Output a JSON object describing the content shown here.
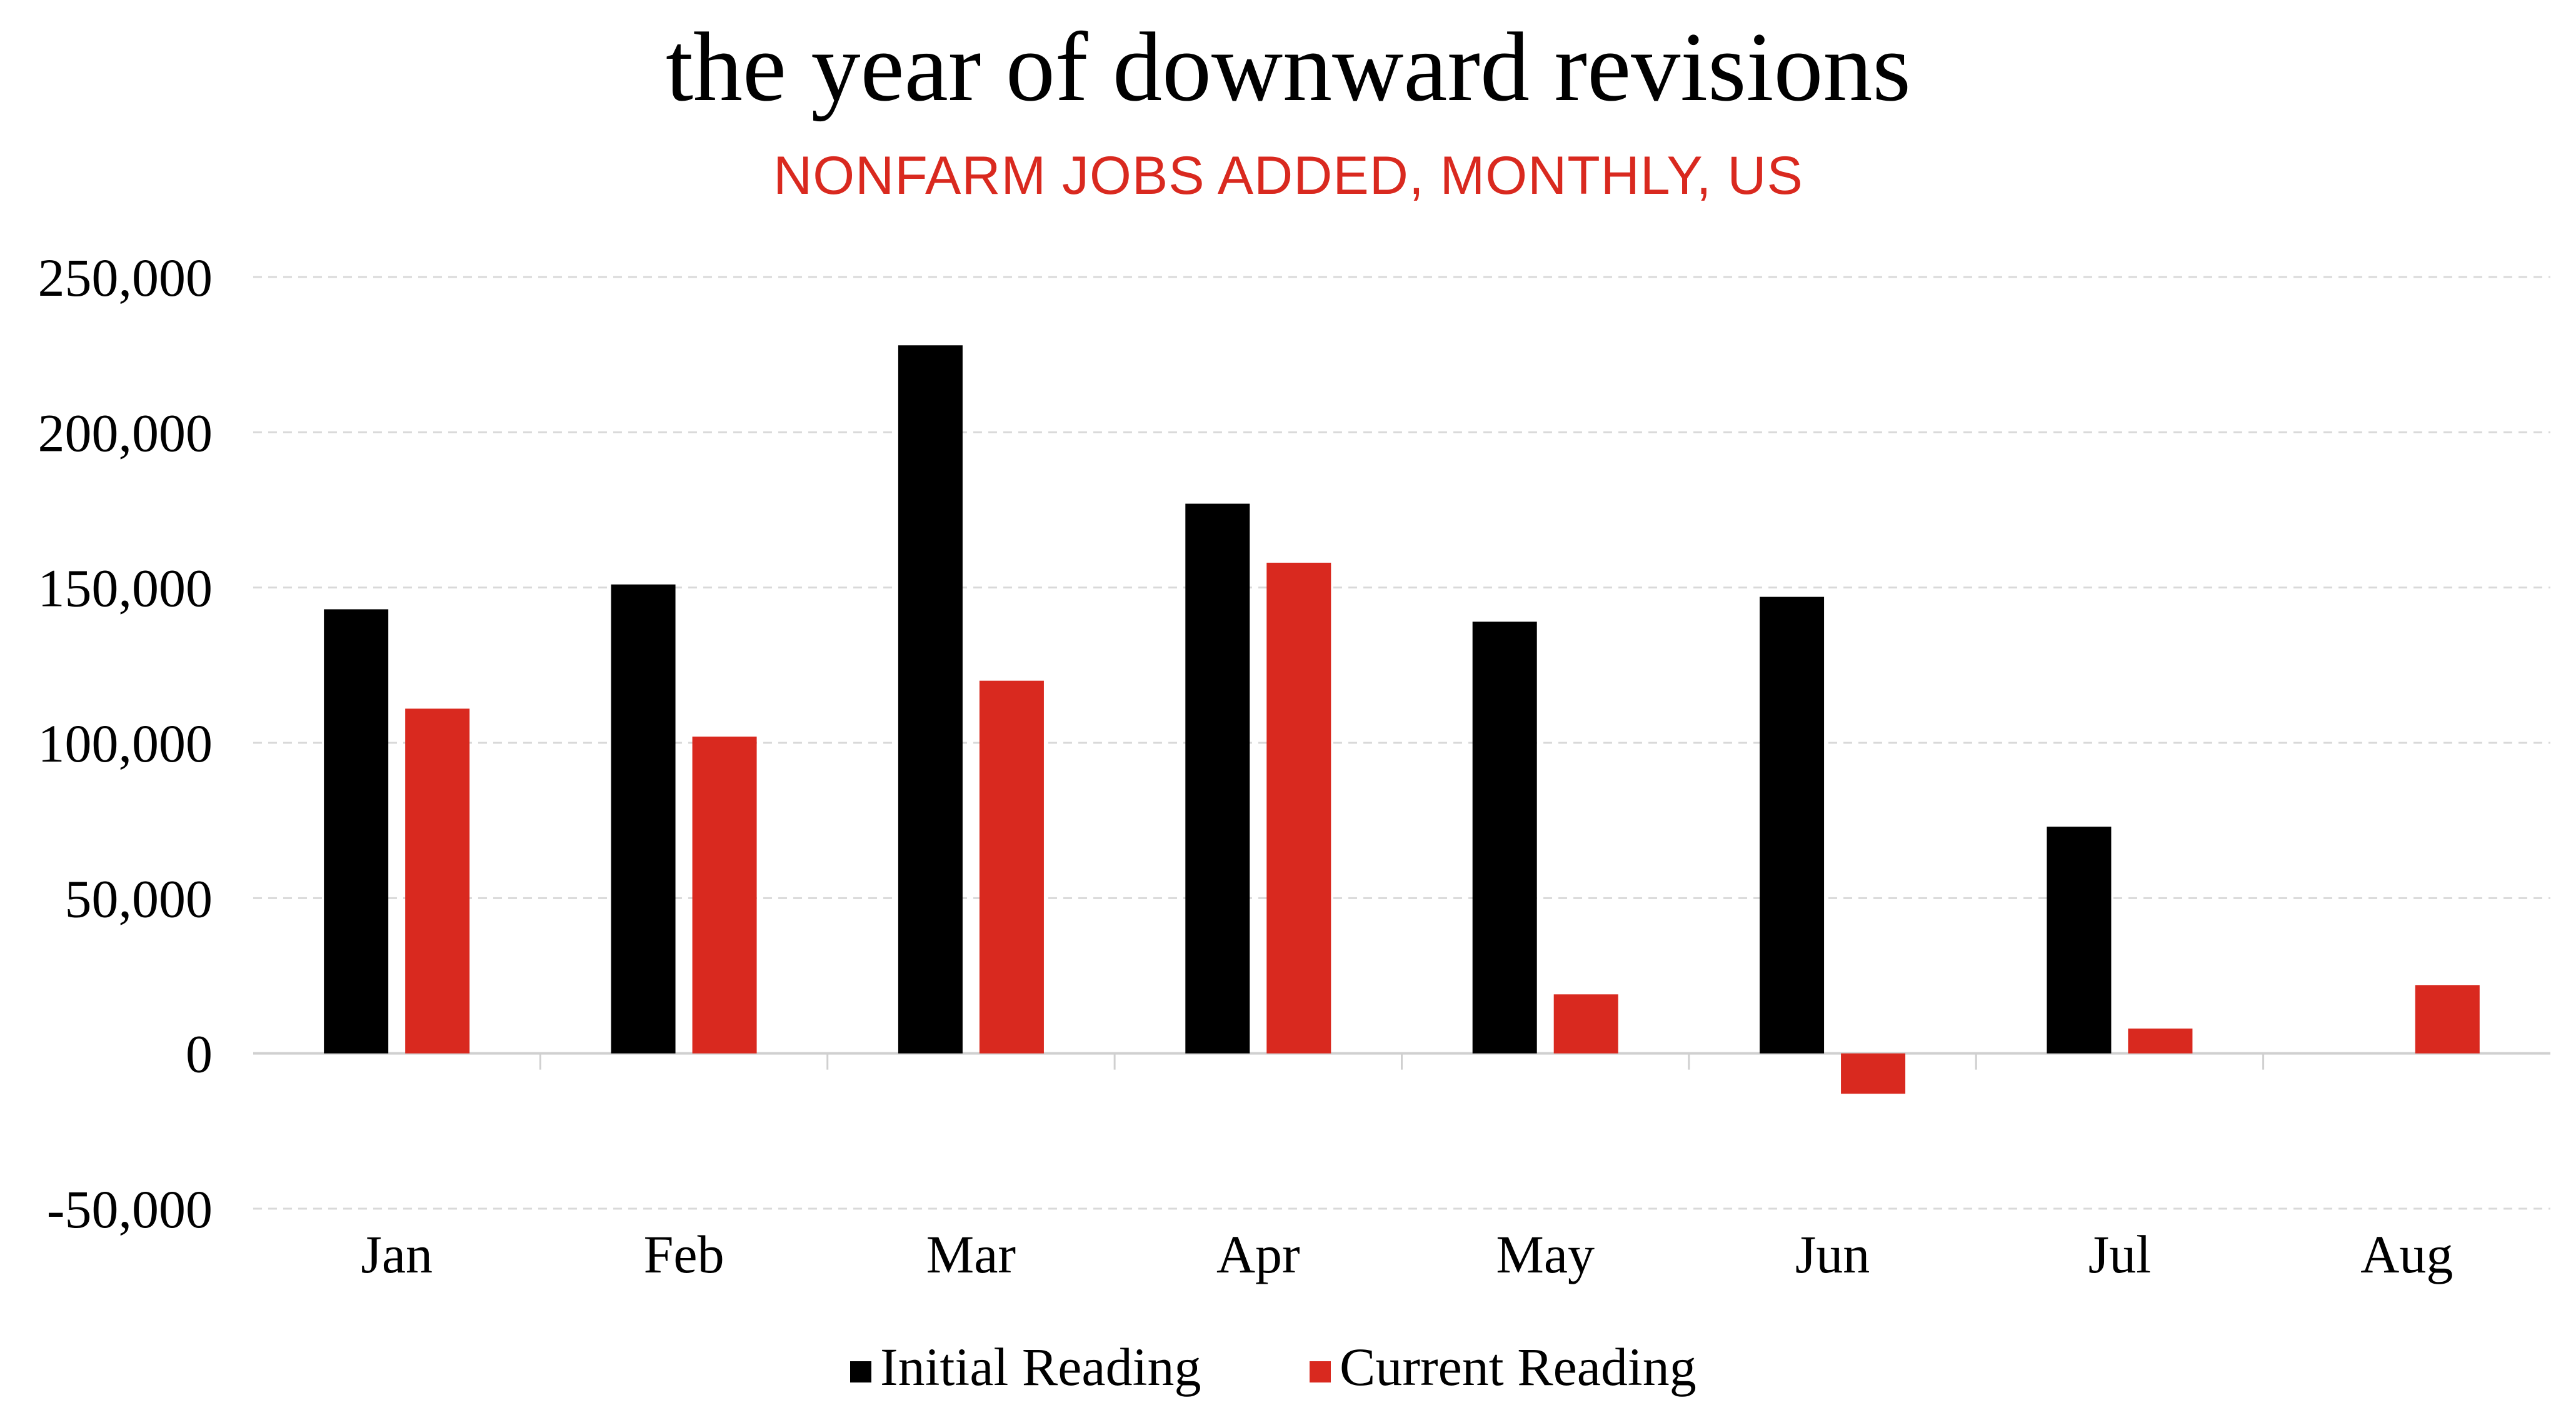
{
  "chart_data": {
    "type": "bar",
    "title": "the year of downward revisions",
    "subtitle": "NONFARM JOBS ADDED, MONTHLY, US",
    "categories": [
      "Jan",
      "Feb",
      "Mar",
      "Apr",
      "May",
      "Jun",
      "Jul",
      "Aug"
    ],
    "series": [
      {
        "name": "Initial Reading",
        "color": "#000000",
        "values": [
          143000,
          151000,
          228000,
          177000,
          139000,
          147000,
          73000,
          null
        ]
      },
      {
        "name": "Current Reading",
        "color": "#d9291f",
        "values": [
          111000,
          102000,
          120000,
          158000,
          19000,
          -13000,
          8000,
          22000
        ]
      }
    ],
    "ylim": [
      -50000,
      250000
    ],
    "y_ticks": [
      250000,
      200000,
      150000,
      100000,
      50000,
      0,
      -50000
    ],
    "y_tick_labels": [
      "250,000",
      "200,000",
      "150,000",
      "100,000",
      "50,000",
      "0",
      "-50,000"
    ],
    "grid": true,
    "legend": "bottom-center",
    "xlabel": "",
    "ylabel": ""
  }
}
